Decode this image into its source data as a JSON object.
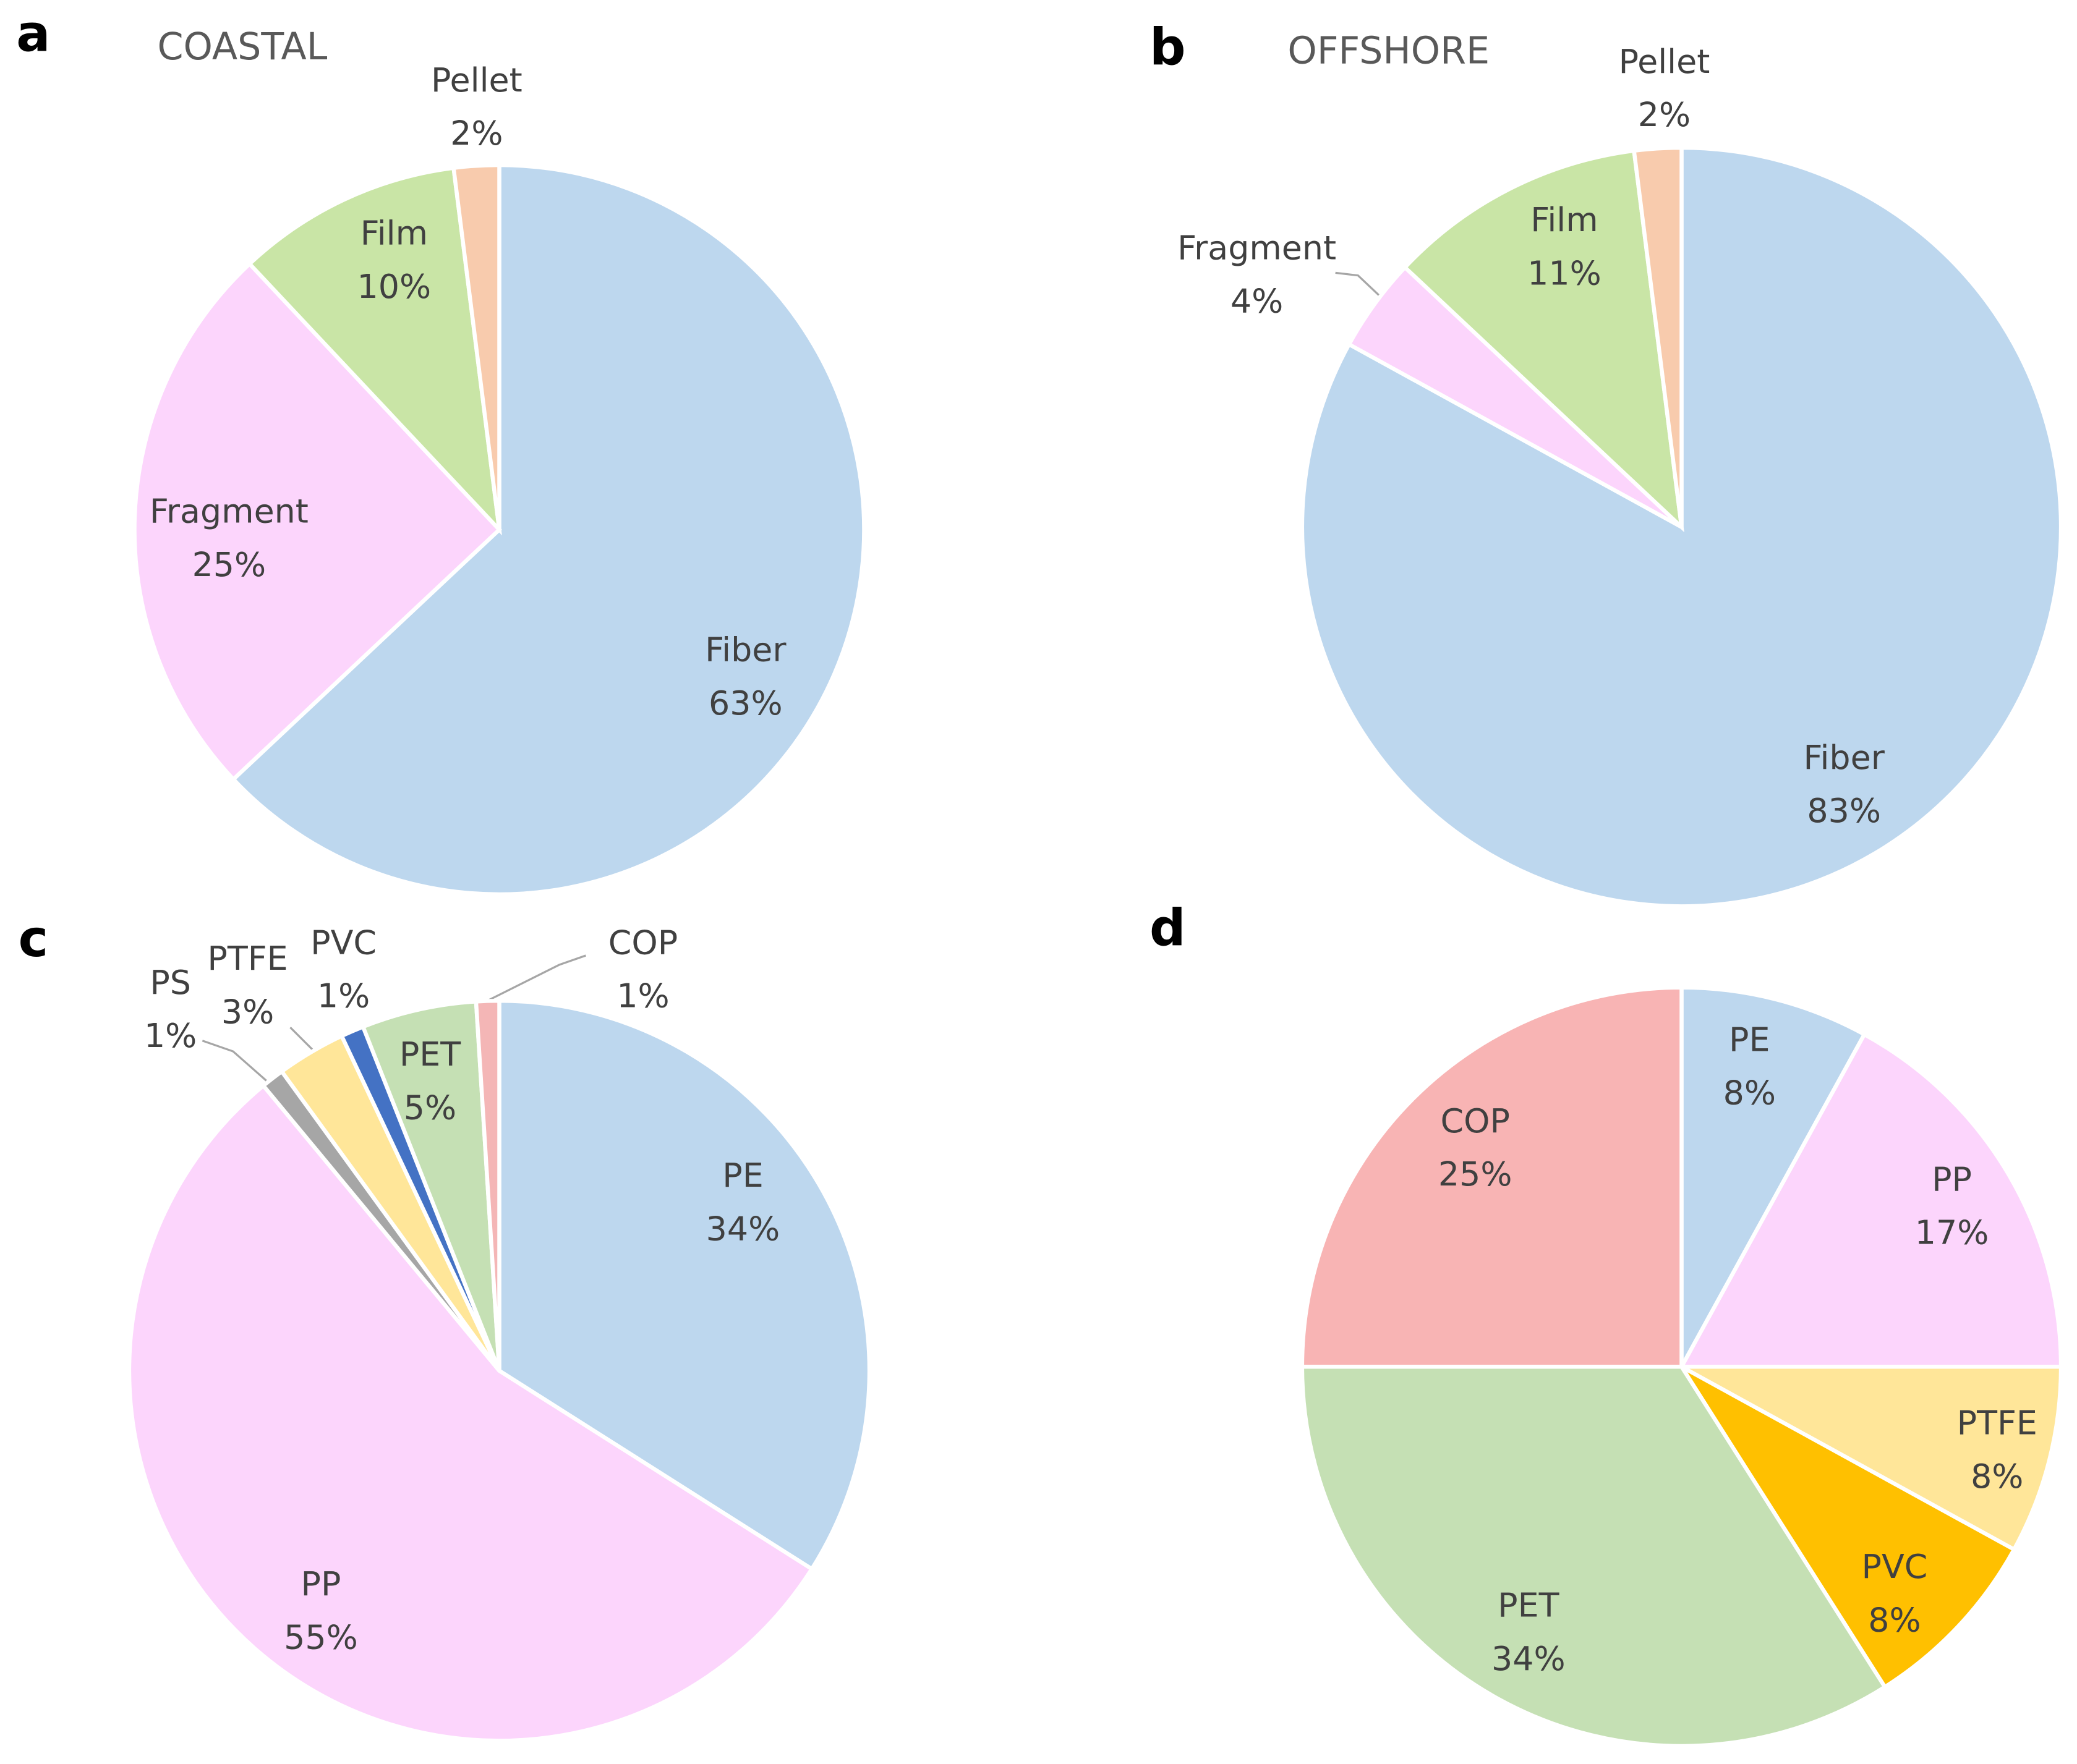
{
  "chart_data": [
    {
      "type": "pie",
      "panel": "a",
      "title": "COASTAL",
      "categories": [
        "Fiber",
        "Fragment",
        "Film",
        "Pellet"
      ],
      "values": [
        63,
        25,
        10,
        2
      ],
      "value_labels": [
        "63%",
        "25%",
        "10%",
        "2%"
      ],
      "colors": [
        "#bdd7ee",
        "#fcd5fc",
        "#c9e5a6",
        "#f8cbad"
      ]
    },
    {
      "type": "pie",
      "panel": "b",
      "title": "OFFSHORE",
      "categories": [
        "Fiber",
        "Fragment",
        "Film",
        "Pellet"
      ],
      "values": [
        83,
        4,
        11,
        2
      ],
      "value_labels": [
        "83%",
        "4%",
        "11%",
        "2%"
      ],
      "colors": [
        "#bdd7ee",
        "#fcd5fc",
        "#c9e5a6",
        "#f8cbad"
      ]
    },
    {
      "type": "pie",
      "panel": "c",
      "categories": [
        "PE",
        "PP",
        "PS",
        "PTFE",
        "PVC",
        "PET",
        "COP"
      ],
      "values": [
        34,
        55,
        1,
        3,
        1,
        5,
        1
      ],
      "value_labels": [
        "34%",
        "55%",
        "1%",
        "3%",
        "1%",
        "5%",
        "1%"
      ],
      "colors": [
        "#bdd7ee",
        "#fcd5fc",
        "#a6a6a6",
        "#ffe699",
        "#4472c4",
        "#c5e0b4",
        "#f4b6b6"
      ]
    },
    {
      "type": "pie",
      "panel": "d",
      "categories": [
        "PE",
        "PP",
        "PTFE",
        "PVC",
        "PET",
        "COP"
      ],
      "values": [
        8,
        17,
        8,
        8,
        34,
        25
      ],
      "value_labels": [
        "8%",
        "17%",
        "8%",
        "8%",
        "34%",
        "25%"
      ],
      "colors": [
        "#bdd7ee",
        "#fcd5fc",
        "#ffe699",
        "#ffc000",
        "#c5e0b4",
        "#f8b4b4"
      ]
    }
  ]
}
